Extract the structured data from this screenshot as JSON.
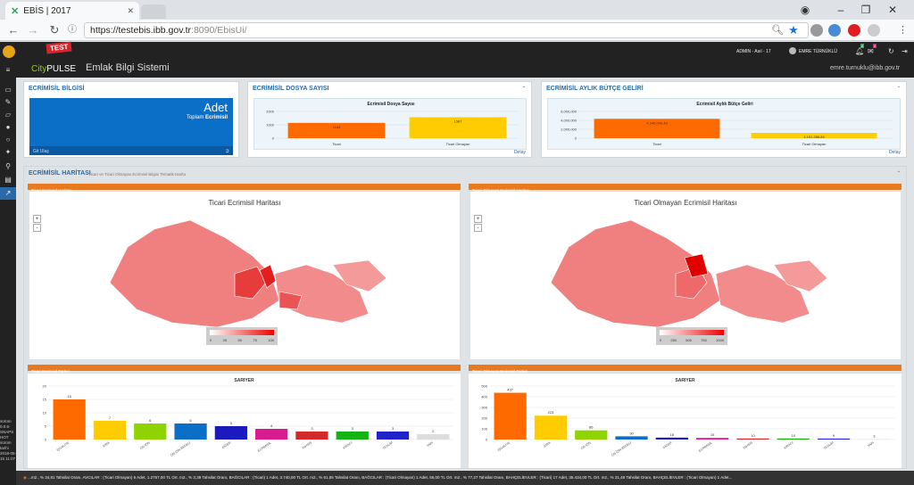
{
  "browser": {
    "tab_title": "EBİS | 2017",
    "url_host": "https://testebis.ibb.gov.tr",
    "url_path": ":8090/EbisUi/"
  },
  "app": {
    "logo_city": "City",
    "logo_pulse": "PULSE",
    "test_badge": "TEST",
    "title": "Emlak Bilgi Sistemi",
    "user_label": "ADMIN - Asıl - 17",
    "user_name": "EMRE TÜRNÜKLÜ",
    "email": "emre.turnuklu@ibb.gov.tr",
    "notif_count_1": "0",
    "notif_count_2": "0",
    "side_text": "sürüm 0.0.5-SNAPSHOT sürüm tarihi 2018-05-15 11:07"
  },
  "panels": {
    "bilgi": {
      "title": "ECRİMİSİL BİLGİSİ",
      "big": "Adet",
      "sub_prefix": "Toplam",
      "sub_bold": "Ecrimisil",
      "footer": "Git Ulaş"
    },
    "dosya": {
      "title": "ECRİMİSİL DOSYA SAYISI",
      "chart_title": "Ecrimisil Dosya Sayısı",
      "detail": "Detay"
    },
    "butce": {
      "title": "ECRİMİSİL AYLIK BÜTÇE GELİRİ",
      "chart_title": "Ecrimisil Aylık Bütçe Geliri",
      "detail": "Detay"
    },
    "harita": {
      "title": "ECRİMİSİL HARİTASI",
      "subtitle": "Ticari ve Ticari Olmayan Ecrimisil Bilgisi Tematik Harita",
      "left_bar": "Ticari Ecrimisil Haritası",
      "right_bar": "Ticari Olmayan Ecrimisil Haritası",
      "left_map_title": "Ticari Ecrimisil Haritası",
      "right_map_title": "Ticari Olmayan Ecrimisil Haritası",
      "left_legend": [
        "0",
        "25",
        "50",
        "75",
        "100"
      ],
      "right_legend": [
        "0",
        "250",
        "500",
        "750",
        "1000"
      ],
      "zoom_in": "+",
      "zoom_out": "-",
      "left_turleri": "Ticari Ecrimisil Türleri",
      "right_turleri": "Ticari Olmayan Ecrimisil Türleri"
    }
  },
  "ticker": "...m2., % 34,81 Tahsilat Oranı, AVCILAR : (Ticari Olmayan) 6 Adet, 1.2757,00 TL Ort. m2., % 3,39 Tahsilat Oranı, BAĞCILAR : (Ticari) 1 Adet, 3.740,00 TL Ort. m2., % 61,55 Tahsilat Oranı, BAĞCILAR : (Ticari Olmayan) 1 Adet, 55,00 TL Ort. m2., % 77,27 Tahsilat Oranı, BAHÇELİEVLER : (Ticari) 17 Adet, 35.434,00 TL Ort. m2., % 31,48 Tahsilat Oranı, BAHÇELİEVLER : (Ticari Olmayan) 1 Adet...",
  "colors": {
    "orange": "#ff6a00",
    "yellow": "#ffcc00",
    "blue": "#0b6fc7",
    "header": "#222222"
  },
  "chart_data": [
    {
      "type": "bar",
      "title": "Ecrimisil Dosya Sayısı",
      "categories": [
        "Ticari",
        "Ticari Olmayan"
      ],
      "values": [
        1144,
        1567
      ],
      "value_labels": [
        "1144",
        "1567"
      ],
      "yticks": [
        "0",
        "1000",
        "2000"
      ],
      "ylim": [
        0,
        2000
      ],
      "colors": [
        "#ff6a00",
        "#ffcc00"
      ]
    },
    {
      "type": "bar",
      "title": "Ecrimisil Aylık Bütçe Geliri",
      "categories": [
        "Ticari",
        "Ticari Olmayan"
      ],
      "values": [
        4346000.43,
        1191286.84
      ],
      "value_labels": [
        "4.346.000,43",
        "1.191.286,84"
      ],
      "yticks": [
        "0",
        "2,000,000",
        "4,000,000",
        "6,000,000"
      ],
      "ylim": [
        0,
        6000000
      ],
      "colors": [
        "#ff6a00",
        "#ffcc00"
      ]
    },
    {
      "type": "bar",
      "title": "SARIYER",
      "categories": [
        "İŞGALİYE",
        "KİRA",
        "ÖN İZİN",
        "ÖN İZİN BEDELİ",
        "DİĞER",
        "ECRİMİSİL",
        "TAHSİS",
        "KİRACI",
        "TESLİM",
        "YAPI"
      ],
      "values": [
        15,
        7,
        6,
        6,
        5,
        4,
        3,
        3,
        3,
        2
      ],
      "yticks": [
        "0",
        "5",
        "10",
        "15",
        "20"
      ],
      "ylim": [
        0,
        20
      ],
      "colors": [
        "#ff6a00",
        "#ffcc00",
        "#8fd400",
        "#0b6fc7",
        "#1a1abf",
        "#d81b8e",
        "#d42a2a",
        "#12b312",
        "#2222cc",
        "#dddddd"
      ]
    },
    {
      "type": "bar",
      "title": "SARIYER",
      "categories": [
        "İŞGALİYE",
        "KİRA",
        "ÖN İZİN",
        "ÖN İZİN BEDELİ",
        "DİĞER",
        "ECRİMİSİL",
        "TAHSİS",
        "KİRACI",
        "TESLİM",
        "YAPI"
      ],
      "values": [
        437,
        223,
        86,
        30,
        18,
        15,
        10,
        10,
        9,
        3
      ],
      "yticks": [
        "0",
        "100",
        "200",
        "300",
        "400",
        "500"
      ],
      "ylim": [
        0,
        500
      ],
      "colors": [
        "#ff6a00",
        "#ffcc00",
        "#8fd400",
        "#0b6fc7",
        "#1a1abf",
        "#d81b8e",
        "#d42a2a",
        "#12b312",
        "#2222cc",
        "#dddddd"
      ]
    }
  ]
}
